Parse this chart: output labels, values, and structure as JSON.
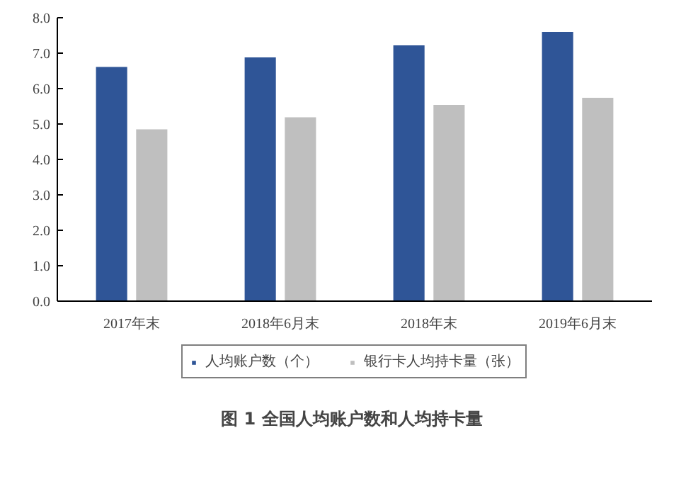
{
  "chart_data": {
    "type": "bar",
    "title": "图 1  全国人均账户数和人均持卡量",
    "categories": [
      "2017年末",
      "2018年6月末",
      "2018年末",
      "2019年6月末"
    ],
    "series": [
      {
        "name": "人均账户数（个）",
        "color": "#2f5597",
        "values": [
          6.61,
          6.88,
          7.22,
          7.6
        ]
      },
      {
        "name": "银行卡人均持卡量（张）",
        "color": "#bfbfbf",
        "values": [
          4.85,
          5.19,
          5.54,
          5.74
        ]
      }
    ],
    "ylim": [
      0,
      8
    ],
    "yticks": [
      {
        "value": 0,
        "label": "0.0"
      },
      {
        "value": 1,
        "label": "1.0"
      },
      {
        "value": 2,
        "label": "2.0"
      },
      {
        "value": 3,
        "label": "3.0"
      },
      {
        "value": 4,
        "label": "4.0"
      },
      {
        "value": 5,
        "label": "5.0"
      },
      {
        "value": 6,
        "label": "6.0"
      },
      {
        "value": 7,
        "label": "7.0"
      },
      {
        "value": 8,
        "label": "8.0"
      }
    ],
    "grid": false,
    "legend": "bottom"
  }
}
